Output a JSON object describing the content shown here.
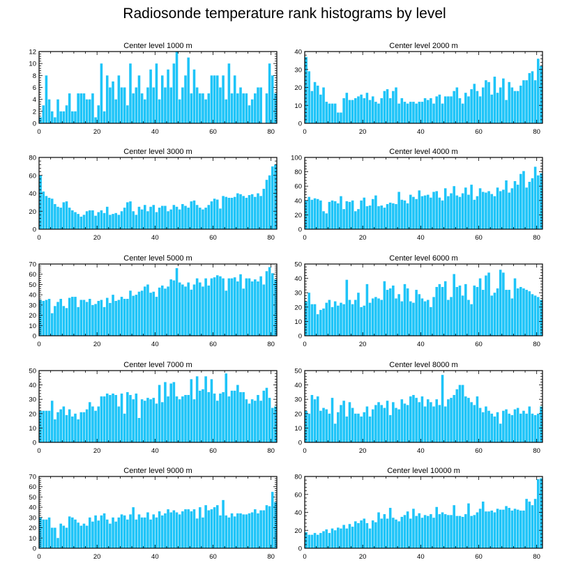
{
  "title": "Radiosonde temperature rank histograms by level",
  "colors": {
    "bar": "#1ec4f8",
    "axis": "#000000"
  },
  "chart_data": [
    {
      "type": "bar",
      "title": "Center level 1000 m",
      "xlim": [
        0,
        82
      ],
      "ylim": [
        0,
        12
      ],
      "xticks": [
        0,
        20,
        40,
        60,
        80
      ],
      "yticks": [
        0,
        2,
        4,
        6,
        8,
        10,
        12
      ],
      "x_start": 0,
      "values": [
        1,
        3,
        8,
        4,
        2,
        1,
        4,
        2,
        2,
        3,
        5,
        2,
        2,
        5,
        5,
        5,
        4,
        4,
        5,
        1,
        3,
        10,
        2,
        8,
        6,
        7,
        4,
        8,
        6,
        6,
        3,
        10,
        5,
        6,
        8,
        5,
        4,
        6,
        9,
        6,
        10,
        4,
        8,
        6,
        9,
        6,
        10,
        12,
        4,
        6,
        8,
        11,
        5,
        9,
        6,
        5,
        5,
        4,
        5,
        8,
        8,
        8,
        6,
        8,
        4,
        10,
        5,
        8,
        5,
        6,
        5,
        5,
        3,
        4,
        5,
        6,
        6,
        0,
        5,
        10,
        8,
        5,
        9,
        10
      ],
      "grid": false,
      "legend": "none"
    },
    {
      "type": "bar",
      "title": "Center level 2000 m",
      "xlim": [
        0,
        82
      ],
      "ylim": [
        0,
        40
      ],
      "xticks": [
        0,
        20,
        40,
        60,
        80
      ],
      "yticks": [
        0,
        10,
        20,
        30,
        40
      ],
      "x_start": 0,
      "values": [
        37,
        29,
        18,
        23,
        21,
        16,
        20,
        12,
        11,
        11,
        11,
        6,
        6,
        14,
        17,
        13,
        13,
        14,
        15,
        16,
        14,
        17,
        13,
        15,
        12,
        11,
        14,
        18,
        19,
        14,
        18,
        20,
        11,
        14,
        12,
        11,
        12,
        12,
        11,
        12,
        12,
        14,
        13,
        14,
        11,
        15,
        16,
        11,
        15,
        15,
        15,
        18,
        20,
        14,
        11,
        17,
        15,
        19,
        22,
        18,
        15,
        20,
        24,
        23,
        16,
        26,
        17,
        20,
        25,
        13,
        23,
        20,
        18,
        18,
        21,
        24,
        24,
        28,
        29,
        24,
        36,
        32
      ],
      "grid": false,
      "legend": "none"
    },
    {
      "type": "bar",
      "title": "Center level 3000 m",
      "xlim": [
        0,
        82
      ],
      "ylim": [
        0,
        80
      ],
      "xticks": [
        0,
        20,
        40,
        60,
        80
      ],
      "yticks": [
        0,
        20,
        40,
        60,
        80
      ],
      "x_start": 0,
      "values": [
        60,
        42,
        37,
        35,
        34,
        28,
        25,
        24,
        30,
        31,
        24,
        21,
        19,
        17,
        14,
        16,
        20,
        21,
        21,
        15,
        19,
        21,
        18,
        25,
        16,
        17,
        18,
        16,
        20,
        24,
        30,
        31,
        20,
        16,
        25,
        22,
        27,
        20,
        25,
        27,
        19,
        24,
        26,
        26,
        20,
        22,
        27,
        25,
        22,
        28,
        26,
        24,
        31,
        32,
        27,
        24,
        22,
        24,
        27,
        31,
        34,
        33,
        23,
        37,
        36,
        35,
        35,
        36,
        40,
        39,
        37,
        35,
        38,
        39,
        36,
        40,
        37,
        45,
        55,
        60,
        70,
        72
      ],
      "grid": false,
      "legend": "none"
    },
    {
      "type": "bar",
      "title": "Center level 4000 m",
      "xlim": [
        0,
        82
      ],
      "ylim": [
        0,
        100
      ],
      "xticks": [
        0,
        20,
        40,
        60,
        80
      ],
      "yticks": [
        0,
        20,
        40,
        60,
        80,
        100
      ],
      "x_start": 0,
      "values": [
        40,
        45,
        41,
        43,
        42,
        40,
        25,
        22,
        38,
        40,
        39,
        36,
        46,
        28,
        39,
        38,
        40,
        25,
        28,
        40,
        44,
        32,
        33,
        42,
        47,
        32,
        33,
        30,
        35,
        37,
        36,
        35,
        52,
        41,
        40,
        36,
        48,
        45,
        42,
        54,
        46,
        47,
        48,
        44,
        52,
        53,
        44,
        40,
        57,
        46,
        50,
        60,
        47,
        45,
        50,
        58,
        48,
        62,
        41,
        46,
        57,
        52,
        51,
        53,
        49,
        46,
        58,
        53,
        55,
        68,
        51,
        57,
        67,
        62,
        77,
        81,
        58,
        66,
        71,
        87,
        75,
        78,
        78,
        80
      ],
      "grid": false,
      "legend": "none"
    },
    {
      "type": "bar",
      "title": "Center level 5000 m",
      "xlim": [
        0,
        82
      ],
      "ylim": [
        0,
        70
      ],
      "xticks": [
        0,
        20,
        40,
        60,
        80
      ],
      "yticks": [
        0,
        10,
        20,
        30,
        40,
        50,
        60,
        70
      ],
      "x_start": 0,
      "values": [
        35,
        34,
        35,
        36,
        22,
        29,
        33,
        36,
        29,
        27,
        37,
        38,
        38,
        28,
        35,
        35,
        33,
        36,
        30,
        31,
        34,
        35,
        28,
        37,
        32,
        40,
        34,
        35,
        38,
        36,
        36,
        44,
        39,
        40,
        43,
        44,
        48,
        50,
        42,
        43,
        38,
        47,
        49,
        46,
        48,
        55,
        54,
        66,
        52,
        50,
        48,
        52,
        45,
        50,
        56,
        52,
        48,
        56,
        49,
        56,
        57,
        59,
        58,
        56,
        44,
        56,
        56,
        57,
        53,
        60,
        46,
        56,
        56,
        53,
        55,
        53,
        58,
        50,
        63,
        67,
        61,
        55,
        52
      ],
      "grid": false,
      "legend": "none"
    },
    {
      "type": "bar",
      "title": "Center level 6000 m",
      "xlim": [
        0,
        82
      ],
      "ylim": [
        0,
        50
      ],
      "xticks": [
        0,
        20,
        40,
        60,
        80
      ],
      "yticks": [
        0,
        10,
        20,
        30,
        40,
        50
      ],
      "x_start": 0,
      "values": [
        24,
        30,
        22,
        22,
        15,
        18,
        19,
        23,
        25,
        20,
        24,
        21,
        23,
        22,
        39,
        25,
        22,
        25,
        30,
        20,
        21,
        36,
        23,
        26,
        27,
        26,
        25,
        38,
        32,
        33,
        35,
        26,
        29,
        24,
        36,
        33,
        24,
        23,
        32,
        29,
        26,
        24,
        25,
        20,
        27,
        34,
        36,
        34,
        38,
        25,
        27,
        43,
        34,
        35,
        28,
        36,
        25,
        22,
        35,
        34,
        40,
        32,
        42,
        44,
        28,
        30,
        33,
        46,
        44,
        32,
        32,
        26,
        40,
        33,
        34,
        33,
        32,
        31,
        29,
        28,
        27,
        25,
        37
      ],
      "grid": false,
      "legend": "none"
    },
    {
      "type": "bar",
      "title": "Center level 7000 m",
      "xlim": [
        0,
        82
      ],
      "ylim": [
        0,
        50
      ],
      "xticks": [
        0,
        20,
        40,
        60,
        80
      ],
      "yticks": [
        0,
        10,
        20,
        30,
        40,
        50
      ],
      "x_start": 0,
      "values": [
        22,
        22,
        22,
        22,
        29,
        16,
        21,
        23,
        25,
        19,
        23,
        18,
        20,
        16,
        21,
        21,
        23,
        28,
        25,
        22,
        25,
        32,
        32,
        34,
        33,
        34,
        33,
        25,
        34,
        20,
        35,
        33,
        30,
        34,
        17,
        30,
        29,
        31,
        30,
        31,
        27,
        40,
        28,
        42,
        32,
        41,
        42,
        32,
        30,
        32,
        33,
        33,
        44,
        30,
        46,
        36,
        37,
        46,
        35,
        44,
        34,
        29,
        34,
        35,
        48,
        32,
        36,
        36,
        40,
        35,
        35,
        30,
        27,
        30,
        29,
        33,
        29,
        36,
        38,
        31,
        24,
        25,
        15
      ],
      "grid": false,
      "legend": "none"
    },
    {
      "type": "bar",
      "title": "Center level 8000 m",
      "xlim": [
        0,
        82
      ],
      "ylim": [
        0,
        50
      ],
      "xticks": [
        0,
        20,
        40,
        60,
        80
      ],
      "yticks": [
        0,
        10,
        20,
        30,
        40,
        50
      ],
      "x_start": 0,
      "values": [
        22,
        20,
        33,
        30,
        32,
        22,
        24,
        23,
        20,
        31,
        13,
        21,
        26,
        29,
        18,
        28,
        24,
        20,
        20,
        18,
        21,
        25,
        18,
        23,
        26,
        28,
        26,
        24,
        29,
        19,
        28,
        24,
        23,
        30,
        27,
        26,
        32,
        33,
        31,
        28,
        32,
        25,
        30,
        28,
        25,
        30,
        26,
        47,
        25,
        30,
        31,
        33,
        37,
        40,
        40,
        32,
        31,
        28,
        26,
        32,
        24,
        21,
        25,
        22,
        20,
        18,
        21,
        13,
        22,
        23,
        20,
        19,
        23,
        24,
        20,
        22,
        20,
        25,
        20,
        19,
        20,
        25,
        20
      ],
      "grid": false,
      "legend": "none"
    },
    {
      "type": "bar",
      "title": "Center level 9000 m",
      "xlim": [
        0,
        82
      ],
      "ylim": [
        0,
        70
      ],
      "xticks": [
        0,
        20,
        40,
        60,
        80
      ],
      "yticks": [
        0,
        10,
        20,
        30,
        40,
        50,
        60,
        70
      ],
      "x_start": 0,
      "values": [
        30,
        28,
        28,
        30,
        20,
        20,
        10,
        24,
        22,
        20,
        31,
        30,
        28,
        25,
        22,
        24,
        22,
        30,
        26,
        32,
        27,
        32,
        34,
        28,
        24,
        30,
        26,
        30,
        33,
        32,
        28,
        33,
        40,
        28,
        33,
        30,
        30,
        35,
        28,
        33,
        30,
        36,
        32,
        34,
        38,
        35,
        37,
        35,
        33,
        36,
        38,
        38,
        36,
        38,
        29,
        40,
        30,
        42,
        37,
        38,
        40,
        42,
        32,
        47,
        32,
        30,
        34,
        31,
        34,
        34,
        33,
        33,
        34,
        35,
        38,
        34,
        37,
        37,
        42,
        41,
        55,
        45,
        60,
        62
      ],
      "grid": false,
      "legend": "none"
    },
    {
      "type": "bar",
      "title": "Center level 10000 m",
      "xlim": [
        0,
        82
      ],
      "ylim": [
        0,
        80
      ],
      "xticks": [
        0,
        20,
        40,
        60,
        80
      ],
      "yticks": [
        0,
        20,
        40,
        60,
        80
      ],
      "x_start": 0,
      "values": [
        18,
        15,
        15,
        17,
        15,
        17,
        19,
        21,
        17,
        22,
        20,
        23,
        22,
        26,
        22,
        27,
        24,
        30,
        28,
        31,
        33,
        28,
        22,
        31,
        29,
        40,
        33,
        38,
        33,
        45,
        34,
        32,
        30,
        35,
        37,
        41,
        33,
        44,
        36,
        39,
        34,
        37,
        36,
        38,
        34,
        46,
        38,
        40,
        38,
        37,
        37,
        48,
        36,
        36,
        35,
        38,
        50,
        36,
        37,
        40,
        44,
        52,
        41,
        41,
        42,
        40,
        44,
        43,
        43,
        47,
        45,
        42,
        44,
        43,
        42,
        42,
        55,
        52,
        48,
        55,
        77,
        78,
        74
      ],
      "grid": false,
      "legend": "none"
    }
  ]
}
